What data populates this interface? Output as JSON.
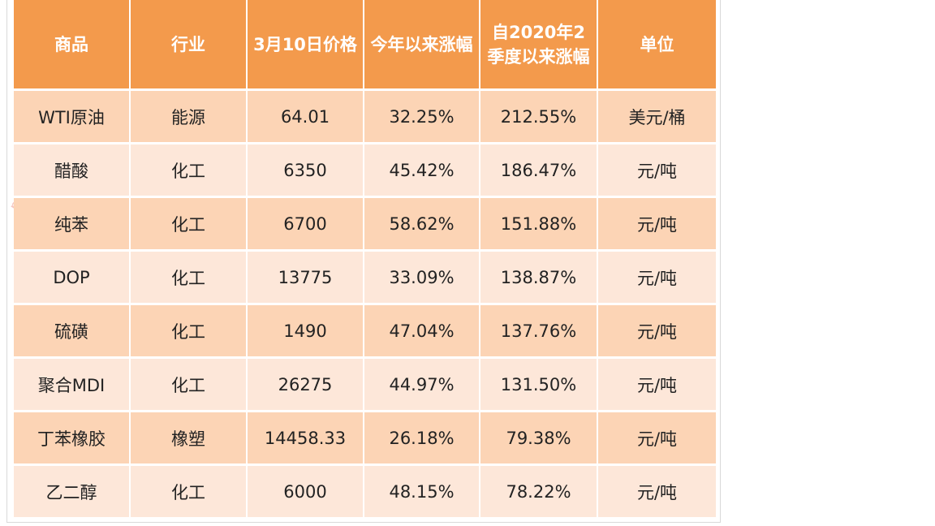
{
  "table": {
    "headers": [
      "商品",
      "行业",
      "3月10日价格",
      "今年以来涨幅",
      "自2020年2季度以来涨幅",
      "单位"
    ],
    "rows": [
      [
        "WTI原油",
        "能源",
        "64.01",
        "32.25%",
        "212.55%",
        "美元/桶"
      ],
      [
        "醋酸",
        "化工",
        "6350",
        "45.42%",
        "186.47%",
        "元/吨"
      ],
      [
        "纯苯",
        "化工",
        "6700",
        "58.62%",
        "151.88%",
        "元/吨"
      ],
      [
        "DOP",
        "化工",
        "13775",
        "33.09%",
        "138.87%",
        "元/吨"
      ],
      [
        "硫磺",
        "化工",
        "1490",
        "47.04%",
        "137.76%",
        "元/吨"
      ],
      [
        "聚合MDI",
        "化工",
        "26275",
        "44.97%",
        "131.50%",
        "元/吨"
      ],
      [
        "丁苯橡胶",
        "橡塑",
        "14458.33",
        "26.18%",
        "79.38%",
        "元/吨"
      ],
      [
        "乙二醇",
        "化工",
        "6000",
        "48.15%",
        "78.22%",
        "元/吨"
      ]
    ]
  },
  "colors": {
    "header_bg": "#f39a4c",
    "row_odd_bg": "#fcd4b5",
    "row_even_bg": "#fde7d9"
  }
}
